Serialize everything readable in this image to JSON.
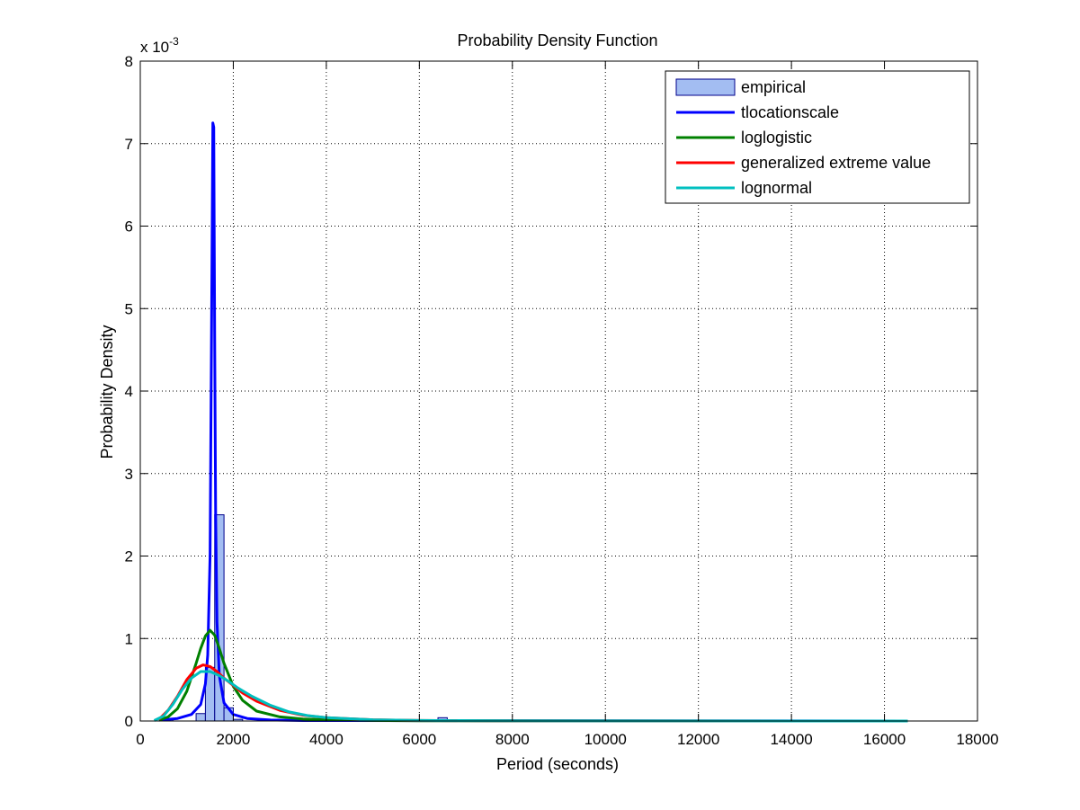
{
  "chart_data": {
    "type": "line",
    "title": "Probability Density Function",
    "xlabel": "Period (seconds)",
    "ylabel": "Probability Density",
    "y_multiplier": "x 10",
    "y_multiplier_exp": "-3",
    "xlim": [
      0,
      18000
    ],
    "ylim": [
      0,
      8
    ],
    "x_ticks": [
      0,
      2000,
      4000,
      6000,
      8000,
      10000,
      12000,
      14000,
      16000,
      18000
    ],
    "x_tick_labels": [
      "0",
      "2000",
      "4000",
      "6000",
      "8000",
      "10000",
      "12000",
      "14000",
      "16000",
      "18000"
    ],
    "y_ticks": [
      0,
      1,
      2,
      3,
      4,
      5,
      6,
      7,
      8
    ],
    "y_tick_labels": [
      "0",
      "1",
      "2",
      "3",
      "4",
      "5",
      "6",
      "7",
      "8"
    ],
    "grid": true,
    "grid_style": "dotted",
    "legend_position": "top-right",
    "histogram": {
      "name": "empirical",
      "color": "#a3bdf2",
      "edge_color": "#00008b",
      "bin_width": 200,
      "bins": [
        {
          "x": 600,
          "value": 0.03
        },
        {
          "x": 1300,
          "value": 0.09
        },
        {
          "x": 1500,
          "value": 0.65
        },
        {
          "x": 1700,
          "value": 2.5
        },
        {
          "x": 1900,
          "value": 0.16
        },
        {
          "x": 2100,
          "value": 0.02
        },
        {
          "x": 5500,
          "value": 0.02
        },
        {
          "x": 6500,
          "value": 0.04
        }
      ]
    },
    "series": [
      {
        "name": "tlocationscale",
        "color": "#0000ff",
        "x": [
          400,
          800,
          1100,
          1300,
          1400,
          1450,
          1500,
          1530,
          1560,
          1580,
          1600,
          1620,
          1650,
          1700,
          1800,
          2000,
          2300,
          2800,
          3500,
          16500
        ],
        "y": [
          0.01,
          0.03,
          0.08,
          0.2,
          0.45,
          0.8,
          2.0,
          4.5,
          7.25,
          7.2,
          4.5,
          2.5,
          1.2,
          0.55,
          0.22,
          0.08,
          0.03,
          0.012,
          0.005,
          0.0
        ]
      },
      {
        "name": "loglogistic",
        "color": "#008000",
        "x": [
          400,
          600,
          800,
          1000,
          1200,
          1300,
          1400,
          1500,
          1600,
          1700,
          1800,
          2000,
          2200,
          2500,
          3000,
          3500,
          4000,
          5000,
          6000,
          8000,
          16500
        ],
        "y": [
          0.01,
          0.05,
          0.15,
          0.36,
          0.7,
          0.88,
          1.03,
          1.1,
          1.04,
          0.88,
          0.7,
          0.42,
          0.25,
          0.12,
          0.05,
          0.025,
          0.015,
          0.006,
          0.003,
          0.001,
          0.0
        ]
      },
      {
        "name": "generalized extreme value",
        "color": "#ff0000",
        "x": [
          400,
          600,
          800,
          1000,
          1200,
          1350,
          1500,
          1650,
          1800,
          2000,
          2200,
          2500,
          3000,
          3500,
          4000,
          5000,
          6000,
          8000,
          16500
        ],
        "y": [
          0.02,
          0.13,
          0.3,
          0.5,
          0.64,
          0.68,
          0.66,
          0.6,
          0.52,
          0.43,
          0.34,
          0.24,
          0.13,
          0.07,
          0.04,
          0.015,
          0.007,
          0.002,
          0.0
        ]
      },
      {
        "name": "lognormal",
        "color": "#00bfbf",
        "x": [
          300,
          500,
          700,
          900,
          1100,
          1300,
          1500,
          1700,
          1900,
          2100,
          2400,
          2800,
          3200,
          3600,
          4000,
          5000,
          6000,
          8000,
          10000,
          16500
        ],
        "y": [
          0.005,
          0.06,
          0.2,
          0.38,
          0.52,
          0.6,
          0.6,
          0.55,
          0.48,
          0.4,
          0.3,
          0.19,
          0.11,
          0.065,
          0.04,
          0.015,
          0.006,
          0.002,
          0.001,
          0.0
        ]
      }
    ]
  }
}
